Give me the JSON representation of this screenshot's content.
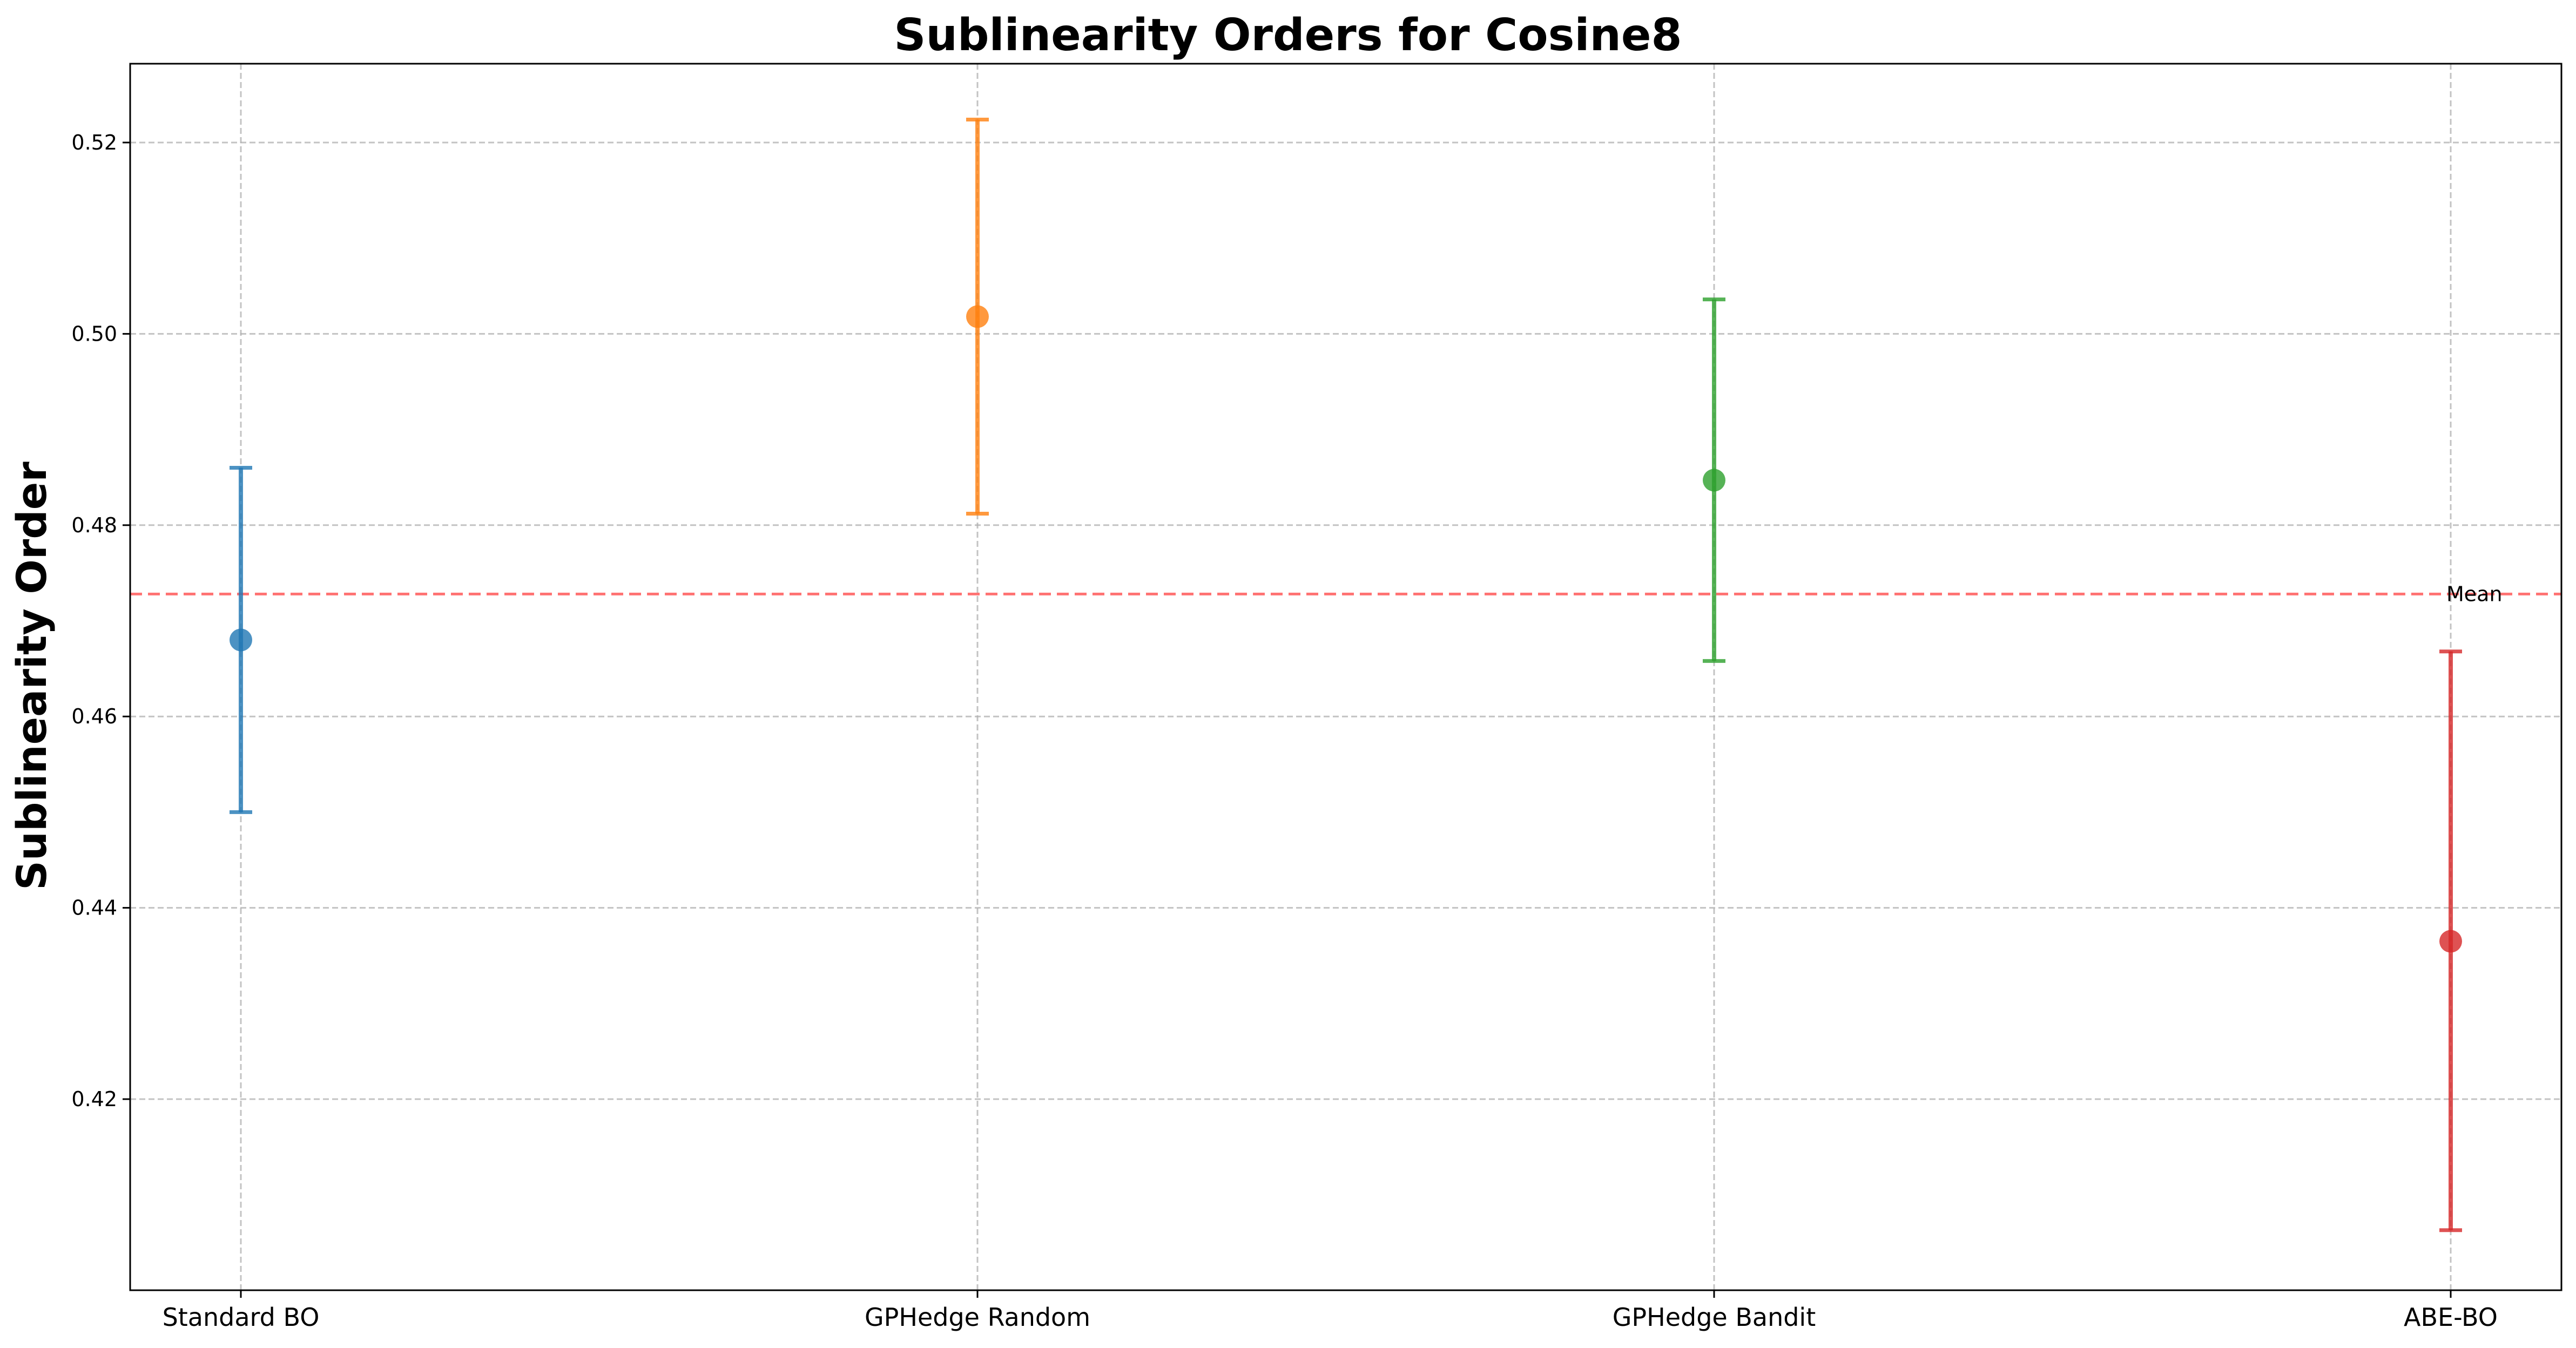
{
  "chart_data": {
    "type": "scatter",
    "subtype": "errorbar",
    "title": "Sublinearity Orders for Cosine8",
    "xlabel": "",
    "ylabel": "Sublinearity Order",
    "categories": [
      "Standard BO",
      "GPHedge Random",
      "GPHedge Bandit",
      "ABE-BO"
    ],
    "series": [
      {
        "category": "Standard BO",
        "value": 0.468,
        "lower": 0.45,
        "upper": 0.486,
        "color": "#1f77b4"
      },
      {
        "category": "GPHedge Random",
        "value": 0.5018,
        "lower": 0.4812,
        "upper": 0.5224,
        "color": "#ff7f0e"
      },
      {
        "category": "GPHedge Bandit",
        "value": 0.4847,
        "lower": 0.4658,
        "upper": 0.5036,
        "color": "#2ca02c"
      },
      {
        "category": "ABE-BO",
        "value": 0.4365,
        "lower": 0.4063,
        "upper": 0.4668,
        "color": "#d62728"
      }
    ],
    "reference_line": {
      "label": "Mean",
      "value": 0.4728,
      "color": "#ff0000",
      "style": "dashed"
    },
    "yticks": [
      "0.42",
      "0.44",
      "0.46",
      "0.48",
      "0.50",
      "0.52"
    ],
    "ylim": [
      0.4,
      0.528
    ],
    "grid": true
  }
}
